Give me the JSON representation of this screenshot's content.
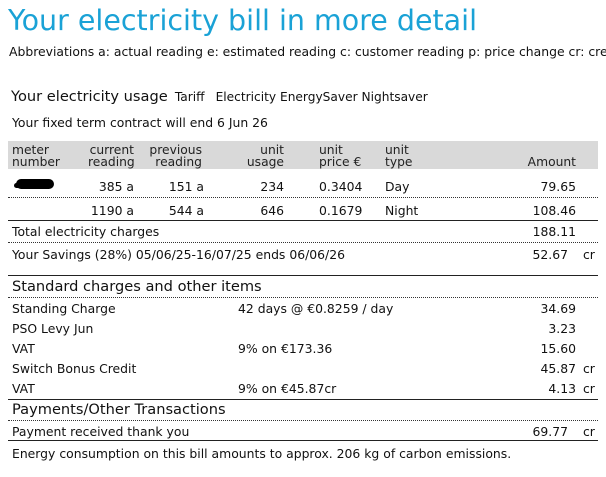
{
  "title": "Your electricity bill in more detail",
  "abbreviations": "Abbreviations a: actual reading e: estimated reading c: customer reading p: price change cr: credit",
  "usage": {
    "heading": "Your electricity usage",
    "tariff_label": "Tariff",
    "tariff_value": "Electricity EnergySaver Nightsaver",
    "contract_note": "Your fixed term contract will end 6 Jun 26"
  },
  "table": {
    "headers": {
      "meter": [
        "meter",
        "number"
      ],
      "current": [
        "current",
        "reading"
      ],
      "previous": [
        "previous",
        "reading"
      ],
      "usage": [
        "unit",
        "usage"
      ],
      "price": [
        "unit",
        "price €"
      ],
      "type": [
        "unit",
        "type"
      ],
      "amount": "Amount"
    },
    "rows": [
      {
        "meter": "",
        "current": "385 a",
        "previous": "151 a",
        "usage": "234",
        "price": "0.3404",
        "type": "Day",
        "amount": "79.65"
      },
      {
        "meter": "",
        "current": "1190 a",
        "previous": "544 a",
        "usage": "646",
        "price": "0.1679",
        "type": "Night",
        "amount": "108.46"
      }
    ],
    "total_label": "Total electricity charges",
    "total_value": "188.11",
    "savings_label": "Your Savings (28%) 05/06/25-16/07/25 ends 06/06/26",
    "savings_value": "52.67",
    "savings_suffix": "cr"
  },
  "standard": {
    "heading": "Standard charges and other items",
    "items": [
      {
        "label": "Standing Charge",
        "detail": "42  days @ €0.8259 / day",
        "amount": "34.69",
        "suffix": ""
      },
      {
        "label": "PSO Levy Jun",
        "detail": "",
        "amount": "3.23",
        "suffix": ""
      },
      {
        "label": "VAT",
        "detail": "9% on €173.36",
        "amount": "15.60",
        "suffix": ""
      },
      {
        "label": "Switch Bonus Credit",
        "detail": "",
        "amount": "45.87",
        "suffix": "cr"
      },
      {
        "label": "VAT",
        "detail": "9% on €45.87cr",
        "amount": "4.13",
        "suffix": "cr"
      }
    ]
  },
  "payments": {
    "heading": "Payments/Other Transactions",
    "item_label": "Payment received thank you",
    "item_amount": "69.77",
    "item_suffix": "cr"
  },
  "footer_note": "Energy consumption on this bill amounts to approx. 206 kg of carbon emissions."
}
